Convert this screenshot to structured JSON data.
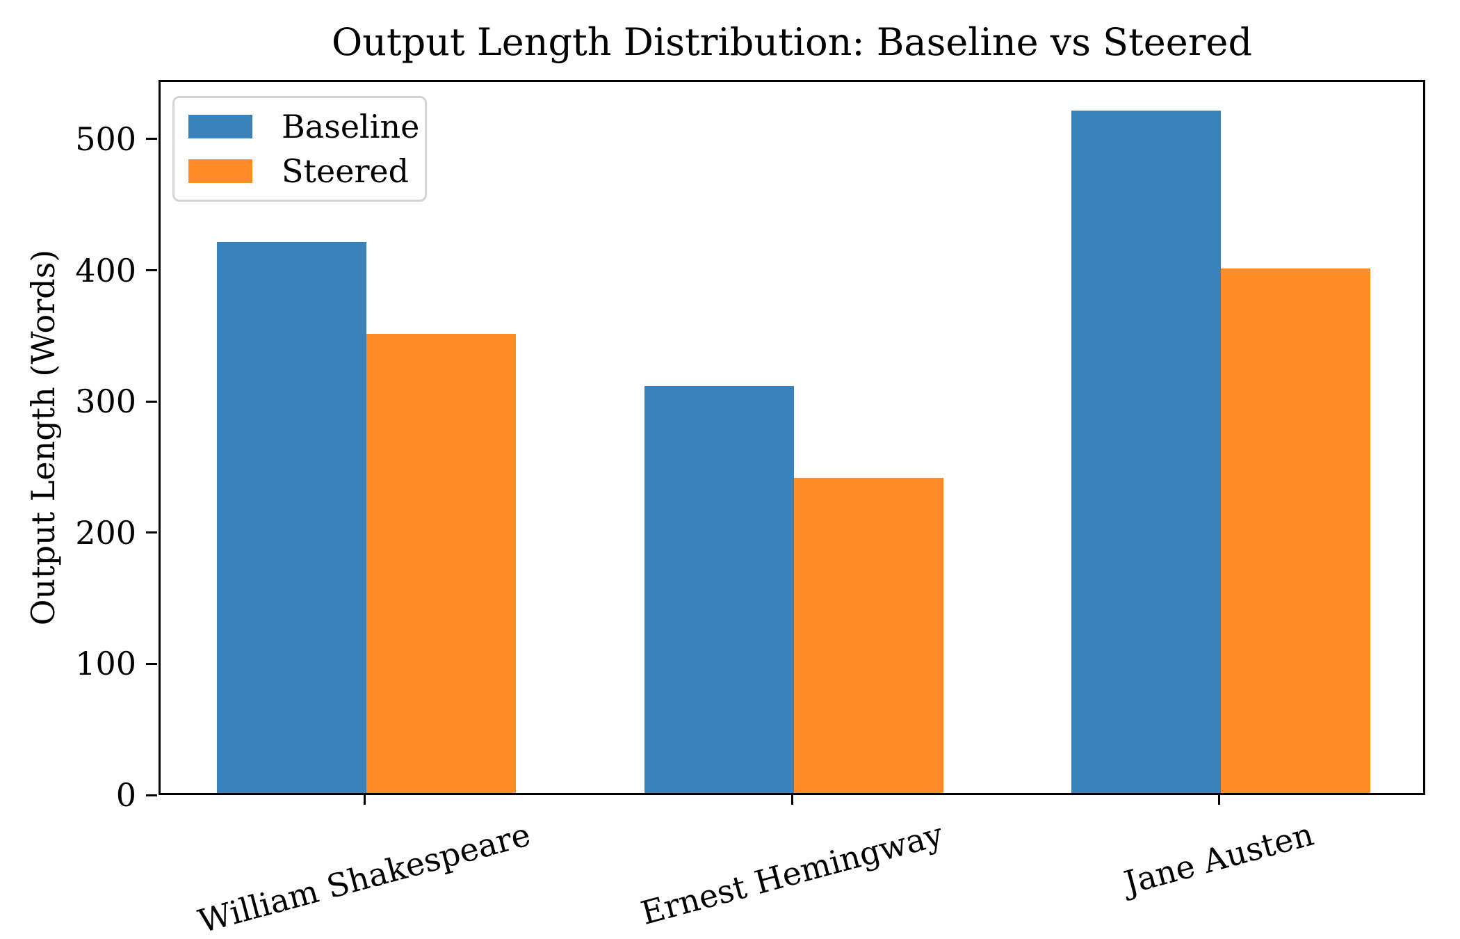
{
  "chart_data": {
    "type": "bar",
    "title": "Output Length Distribution: Baseline vs Steered",
    "ylabel": "Output Length (Words)",
    "xlabel": "",
    "categories": [
      "William Shakespeare",
      "Ernest Hemingway",
      "Jane Austen"
    ],
    "series": [
      {
        "name": "Baseline",
        "color": "#3a82bb",
        "values": [
          420,
          310,
          520
        ]
      },
      {
        "name": "Steered",
        "color": "#ff8c26",
        "values": [
          350,
          240,
          400
        ]
      }
    ],
    "yticks": [
      0,
      100,
      200,
      300,
      400,
      500
    ],
    "ylim": [
      0,
      545
    ],
    "grid": false,
    "legend_position": "upper left",
    "xtick_rotation_deg": 15,
    "colors": {
      "baseline": "#3a82bb",
      "steered": "#ff8c26",
      "axis": "#000000",
      "legend_border": "#d4d4d4",
      "background": "#ffffff"
    }
  }
}
